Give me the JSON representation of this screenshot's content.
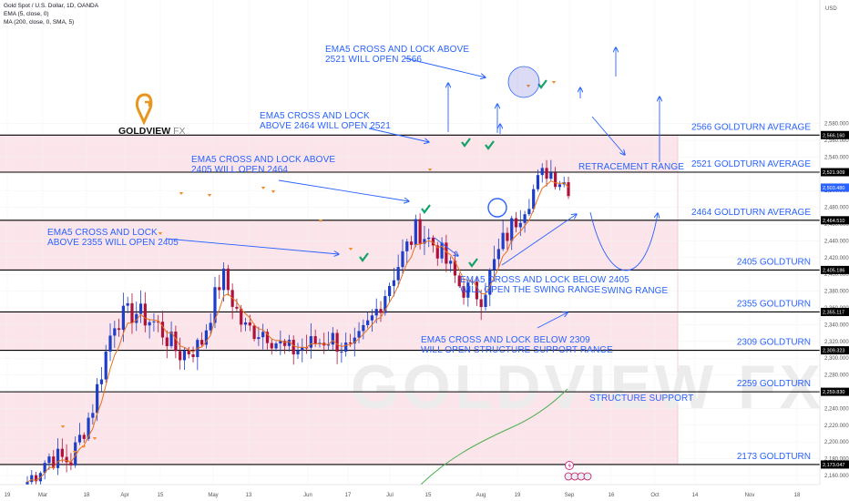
{
  "header": {
    "symbol_line": "Gold Spot / U.S. Dollar, 1D, OANDA",
    "ema_line": "EMA (5, close, 0)",
    "ma_line": "MA (200, close, 0, SMA, 5)"
  },
  "currency": "USD",
  "logo": {
    "word1": "GOLDVIEW",
    "word2": "FX"
  },
  "watermark": "GOLDVIEW FX",
  "colors": {
    "bull": "#1e3ec8",
    "bear": "#b0113a",
    "zone": "#fbe4ea",
    "ema": "#e8711b",
    "ma": "#4caf50",
    "annotation": "#2962ff",
    "check": "#13a36a"
  },
  "chart_data": {
    "type": "candlestick",
    "title": "Gold Spot / U.S. Dollar, 1D, OANDA",
    "ylim": [
      2150,
      2600
    ],
    "y_ticks": [
      2160,
      2180,
      2200,
      2220,
      2240,
      2260,
      2280,
      2300,
      2320,
      2340,
      2360,
      2380,
      2400,
      2420,
      2440,
      2460,
      2480,
      2500,
      2520,
      2540,
      2560,
      2580
    ],
    "x_ticks": [
      "19",
      "Mar",
      "18",
      "Apr",
      "15",
      "May",
      "13",
      "Jun",
      "17",
      "Jul",
      "15",
      "Aug",
      "19",
      "Sep",
      "16",
      "Oct",
      "14",
      "Nov",
      "18"
    ],
    "levels": [
      {
        "price": 2566.16,
        "label": "2566 GOLDTURN AVERAGE",
        "tag": "2,566.160"
      },
      {
        "price": 2521.909,
        "label": "2521 GOLDTURN AVERAGE",
        "tag": "2,521.909"
      },
      {
        "price": 2464.51,
        "label": "2464 GOLDTURN AVERAGE",
        "tag": "2,464.510"
      },
      {
        "price": 2405.186,
        "label": "2405 GOLDTURN",
        "tag": "2,405.186"
      },
      {
        "price": 2355.117,
        "label": "2355 GOLDTURN",
        "tag": "2,355.117"
      },
      {
        "price": 2309.323,
        "label": "2309 GOLDTURN",
        "tag": "2,309.323"
      },
      {
        "price": 2259.83,
        "label": "2259 GOLDTURN",
        "tag": "2,259.830"
      },
      {
        "price": 2173.047,
        "label": "2173 GOLDTURN",
        "tag": "2,173.047"
      }
    ],
    "current_price": {
      "price": 2503.48,
      "tag": "2,503.480"
    },
    "annotations": [
      {
        "lines": [
          "EMA5 CROSS AND LOCK ABOVE",
          "2521 WILL OPEN 2566"
        ]
      },
      {
        "lines": [
          "EMA5 CROSS AND LOCK",
          "ABOVE 2464 WILL OPEN 2521"
        ]
      },
      {
        "lines": [
          "EMA5 CROSS AND LOCK ABOVE",
          "2405 WILL OPEN 2464"
        ]
      },
      {
        "lines": [
          "EMA5 CROSS AND LOCK",
          "ABOVE 2355 WILL OPEN 2405"
        ]
      },
      {
        "lines": [
          "EMA5 CROSS AND LOCK BELOW 2405",
          "WILL OPEN THE SWING RANGE"
        ]
      },
      {
        "lines": [
          "EMA5 CROSS AND LOCK BELOW 2309",
          "WILL OPEN STRUCTURE SUPPORT RANGE"
        ]
      },
      {
        "lines": [
          "RETRACEMENT RANGE"
        ]
      },
      {
        "lines": [
          "SWING RANGE"
        ]
      },
      {
        "lines": [
          "STRUCTURE SUPPORT"
        ]
      }
    ],
    "price_path_keypoints": [
      [
        2150,
        2155
      ],
      [
        2190,
        2175
      ],
      [
        2185,
        2170
      ],
      [
        2230,
        2250
      ],
      [
        2350,
        2340
      ],
      [
        2370,
        2340
      ],
      [
        2330,
        2350
      ],
      [
        2310,
        2300
      ],
      [
        2320,
        2310
      ],
      [
        2380,
        2420
      ],
      [
        2340,
        2330
      ],
      [
        2345,
        2320
      ],
      [
        2310,
        2305
      ],
      [
        2300,
        2330
      ],
      [
        2330,
        2320
      ],
      [
        2310,
        2300
      ],
      [
        2340,
        2360
      ],
      [
        2390,
        2420
      ],
      [
        2440,
        2470
      ],
      [
        2460,
        2400
      ],
      [
        2380,
        2390
      ],
      [
        2370,
        2380
      ],
      [
        2420,
        2460
      ],
      [
        2470,
        2500
      ],
      [
        2530,
        2520
      ],
      [
        2510,
        2503
      ]
    ]
  }
}
